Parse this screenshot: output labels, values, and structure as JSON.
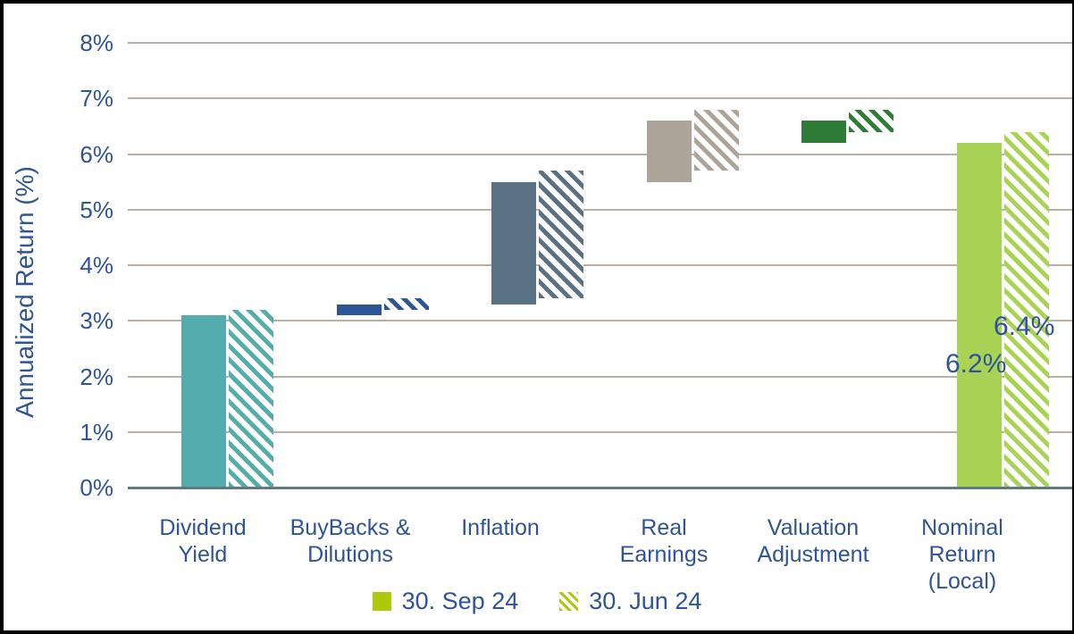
{
  "chart_data": {
    "type": "bar",
    "subtype": "waterfall",
    "title": "",
    "xlabel": "",
    "ylabel": "Annualized Return (%)",
    "ylim": [
      0,
      8
    ],
    "yticks": [
      "0%",
      "1%",
      "2%",
      "3%",
      "4%",
      "5%",
      "6%",
      "7%",
      "8%"
    ],
    "grid": true,
    "legend_position": "bottom-center",
    "categories": [
      "Dividend Yield",
      "BuyBacks & Dilutions",
      "Inflation",
      "Real Earnings",
      "Valuation Adjustment",
      "Nominal Return (Local)"
    ],
    "category_label_lines": [
      [
        "Dividend",
        "Yield"
      ],
      [
        "BuyBacks &",
        "Dilutions"
      ],
      [
        "Inflation"
      ],
      [
        "Real",
        "Earnings"
      ],
      [
        "Valuation",
        "Adjustment"
      ],
      [
        "Nominal",
        "Return",
        "(Local)"
      ]
    ],
    "series": [
      {
        "name": "30. Sep 24",
        "pattern": "solid",
        "segments": [
          [
            0,
            3.1
          ],
          [
            3.1,
            3.3
          ],
          [
            3.3,
            5.5
          ],
          [
            5.5,
            6.6
          ],
          [
            6.2,
            6.6
          ],
          [
            0,
            6.2
          ]
        ],
        "contributions": [
          3.1,
          0.2,
          2.2,
          1.1,
          -0.4,
          6.2
        ]
      },
      {
        "name": "30. Jun 24",
        "pattern": "diagonal-hatch",
        "segments": [
          [
            0,
            3.2
          ],
          [
            3.2,
            3.4
          ],
          [
            3.4,
            5.7
          ],
          [
            5.7,
            6.8
          ],
          [
            6.4,
            6.8
          ],
          [
            0,
            6.4
          ]
        ],
        "contributions": [
          3.2,
          0.2,
          2.3,
          1.1,
          -0.4,
          6.4
        ]
      }
    ],
    "data_labels": [
      {
        "text": "6.2%",
        "series": "30. Sep 24",
        "category": "Nominal Return (Local)"
      },
      {
        "text": "6.4%",
        "series": "30. Jun 24",
        "category": "Nominal Return (Local)"
      }
    ],
    "colors": {
      "category_fill": [
        "#54ACAF",
        "#2E5596",
        "#5A7183",
        "#ACA399",
        "#2F7B38",
        "#A8D355"
      ],
      "legend_marker": "#ABC90D",
      "axis_text": "#2E5496",
      "gridline": "#B8B0A6",
      "axis_line": "#5F7A82",
      "background": "#FFFFFF",
      "frame": "#000000"
    }
  }
}
